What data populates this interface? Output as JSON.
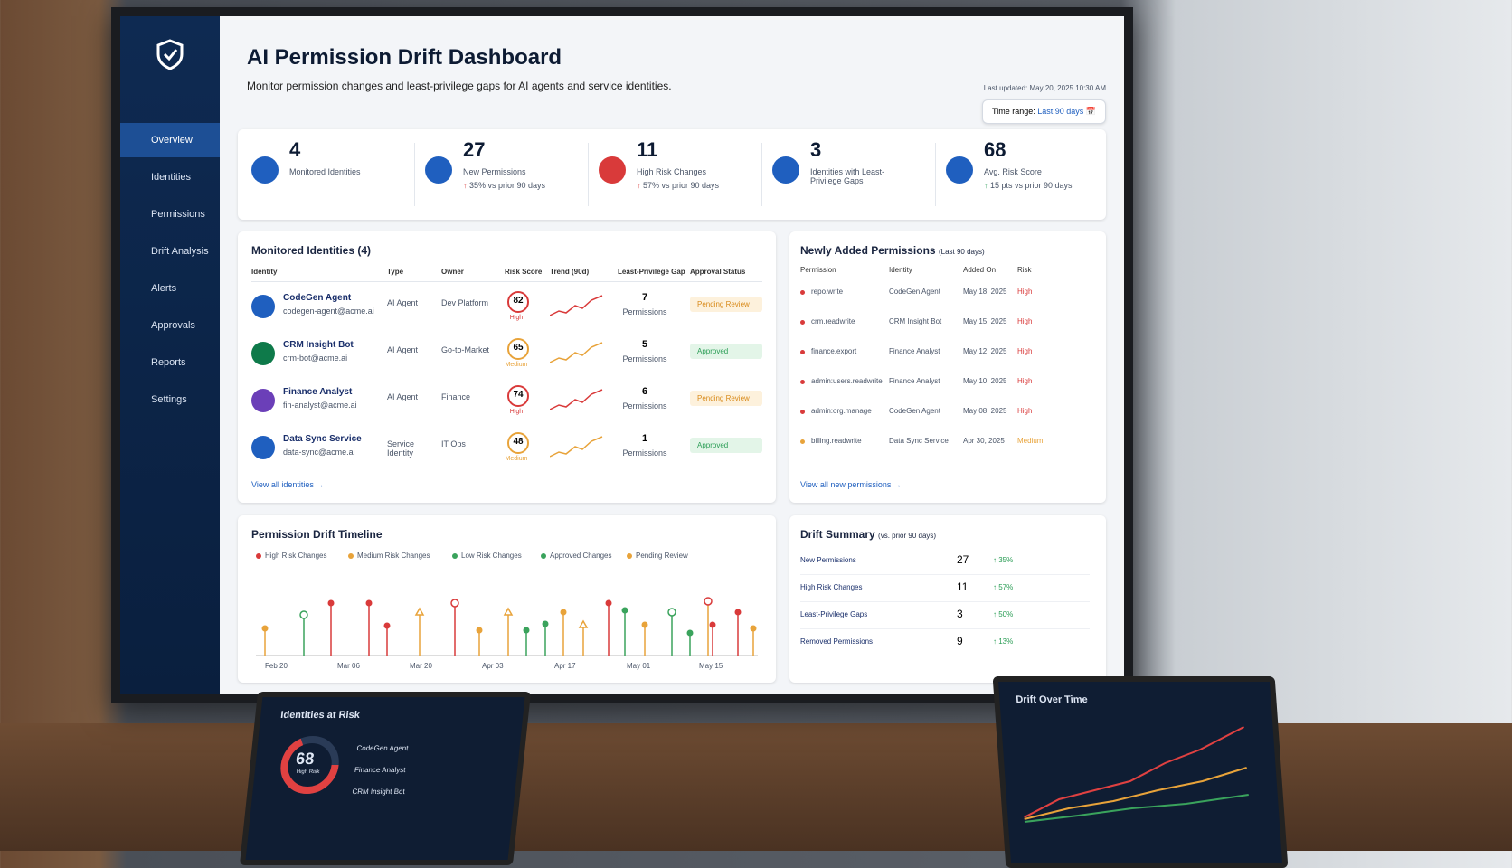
{
  "sidebar": {
    "nav": [
      "Overview",
      "Identities",
      "Permissions",
      "Drift Analysis",
      "Alerts",
      "Approvals",
      "Reports",
      "Settings"
    ]
  },
  "header": {
    "title": "AI Permission Drift Dashboard",
    "subtitle": "Monitor permission changes and least-privilege gaps for AI agents and service identities.",
    "last_updated": "Last updated: May 20, 2025 10:30 AM",
    "time_range_label": "Time range:",
    "time_range": "Last 90 days"
  },
  "kpis": [
    {
      "value": 4,
      "label": "Monitored Identities"
    },
    {
      "value": 27,
      "label": "New Permissions",
      "delta": "35% vs prior 90 days"
    },
    {
      "value": 11,
      "label": "High Risk Changes",
      "delta": "57% vs prior 90 days"
    },
    {
      "value": 3,
      "label": "Identities with Least-Privilege Gaps"
    },
    {
      "value": 68,
      "label": "Avg. Risk Score",
      "delta": "15 pts vs prior 90 days"
    }
  ],
  "identities": {
    "title": "Monitored Identities (4)",
    "columns": [
      "Identity",
      "Type",
      "Owner",
      "Risk Score",
      "Trend (90d)",
      "Least-Privilege Gap",
      "Approval Status"
    ],
    "rows": [
      {
        "name": "CodeGen Agent",
        "email": "codegen-agent@acme.ai",
        "type": "AI Agent",
        "owner": "Dev Platform",
        "score": 82,
        "level": "High",
        "gap": 7,
        "gap_unit": "Permissions",
        "status": "Pending Review"
      },
      {
        "name": "CRM Insight Bot",
        "email": "crm-bot@acme.ai",
        "type": "AI Agent",
        "owner": "Go-to-Market",
        "score": 65,
        "level": "Medium",
        "gap": 5,
        "gap_unit": "Permissions",
        "status": "Approved"
      },
      {
        "name": "Finance Analyst",
        "email": "fin-analyst@acme.ai",
        "type": "AI Agent",
        "owner": "Finance",
        "score": 74,
        "level": "High",
        "gap": 6,
        "gap_unit": "Permissions",
        "status": "Pending Review"
      },
      {
        "name": "Data Sync Service",
        "email": "data-sync@acme.ai",
        "type": "Service Identity",
        "owner": "IT Ops",
        "score": 48,
        "level": "Medium",
        "gap": 1,
        "gap_unit": "Permissions",
        "status": "Approved"
      }
    ],
    "link": "View all identities"
  },
  "permissions": {
    "title": "Newly Added Permissions",
    "subtitle": "(Last 90 days)",
    "columns": [
      "Permission",
      "Identity",
      "Added On",
      "Risk"
    ],
    "rows": [
      [
        "repo.write",
        "CodeGen Agent",
        "May 18, 2025",
        "High"
      ],
      [
        "crm.readwrite",
        "CRM Insight Bot",
        "May 15, 2025",
        "High"
      ],
      [
        "finance.export",
        "Finance Analyst",
        "May 12, 2025",
        "High"
      ],
      [
        "admin:users.readwrite",
        "Finance Analyst",
        "May 10, 2025",
        "High"
      ],
      [
        "admin:org.manage",
        "CodeGen Agent",
        "May 08, 2025",
        "High"
      ],
      [
        "billing.readwrite",
        "Data Sync Service",
        "Apr 30, 2025",
        "Medium"
      ]
    ],
    "link": "View all new permissions"
  },
  "timeline": {
    "title": "Permission Drift Timeline",
    "legend": [
      "High Risk Changes",
      "Medium Risk Changes",
      "Low Risk Changes",
      "Approved Changes",
      "Pending Review"
    ],
    "dates": [
      "Feb 20",
      "Mar 06",
      "Mar 20",
      "Apr 03",
      "Apr 17",
      "May 01",
      "May 15"
    ]
  },
  "summary": {
    "title": "Drift Summary",
    "subtitle": "(vs. prior 90 days)",
    "rows": [
      [
        "New Permissions",
        27,
        "35%"
      ],
      [
        "High Risk Changes",
        11,
        "57%"
      ],
      [
        "Least-Privilege Gaps",
        3,
        "50%"
      ],
      [
        "Removed Permissions",
        9,
        "13%"
      ]
    ]
  },
  "laptops": {
    "left_title": "Identities at Risk",
    "left_score": 68,
    "left_sub": "High Risk",
    "left_items": [
      "CodeGen Agent",
      "Finance Analyst",
      "CRM Insight Bot"
    ],
    "right_title": "Drift Over Time"
  }
}
